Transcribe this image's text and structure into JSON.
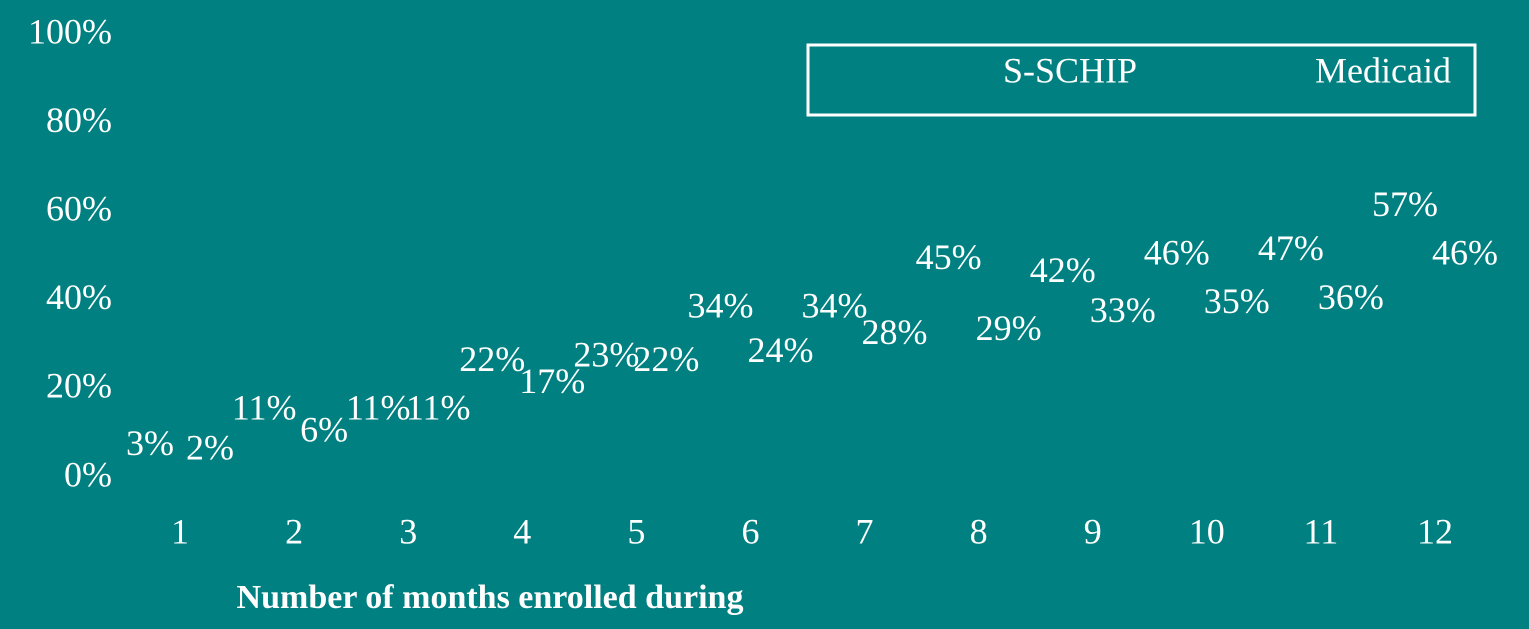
{
  "chart_data": {
    "type": "bar",
    "x_label": "Number of months enrolled during",
    "categories": [
      "1",
      "2",
      "3",
      "4",
      "5",
      "6",
      "7",
      "8",
      "9",
      "10",
      "11",
      "12"
    ],
    "series": [
      {
        "name": "S-SCHIP",
        "color": "#008080",
        "values": [
          3,
          11,
          11,
          22,
          23,
          34,
          34,
          45,
          42,
          46,
          47,
          57
        ],
        "value_labels": [
          "3%",
          "11%",
          "11%",
          "22%",
          "23%",
          "34%",
          "34%",
          "45%",
          "42%",
          "46%",
          "47%",
          "57%"
        ]
      },
      {
        "name": "Medicaid",
        "color": "#008080",
        "values": [
          2,
          6,
          11,
          17,
          22,
          24,
          28,
          29,
          33,
          35,
          36,
          46
        ],
        "value_labels": [
          "2%",
          "6%",
          "11%",
          "17%",
          "22%",
          "24%",
          "28%",
          "29%",
          "33%",
          "35%",
          "36%",
          "46%"
        ]
      }
    ],
    "ylim": [
      0,
      100
    ],
    "yticks": [
      {
        "value": 0,
        "label": "0%"
      },
      {
        "value": 20,
        "label": "20%"
      },
      {
        "value": 40,
        "label": "40%"
      },
      {
        "value": 60,
        "label": "60%"
      },
      {
        "value": 80,
        "label": "80%"
      },
      {
        "value": 100,
        "label": "100%"
      }
    ],
    "legend": "top-right"
  }
}
